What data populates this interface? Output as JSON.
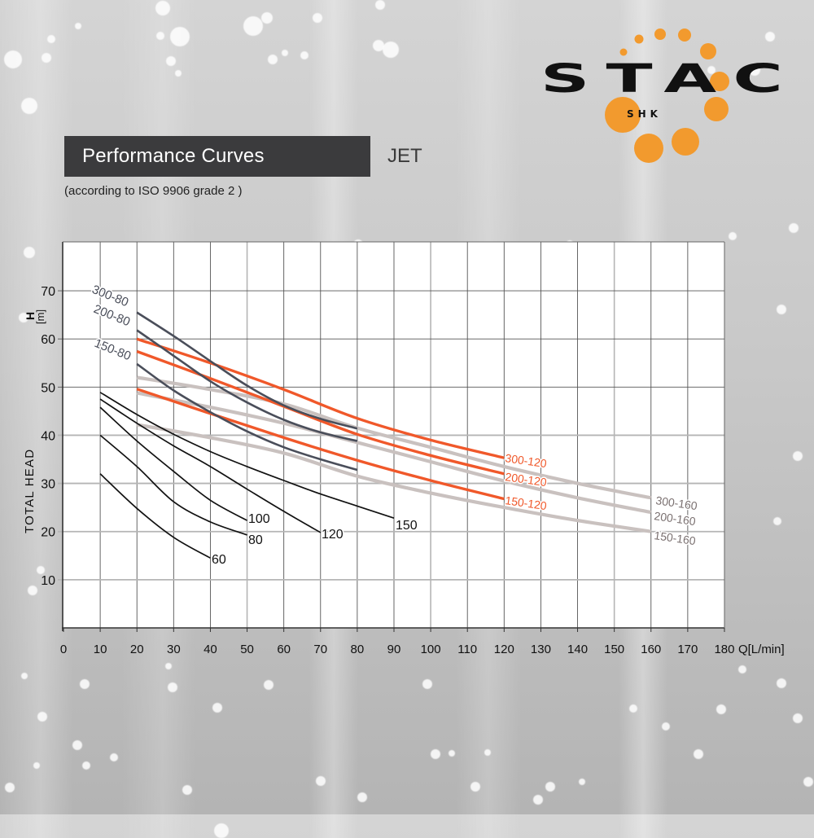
{
  "header": {
    "title": "Performance Curves",
    "model": "JET",
    "subtitle": "(according to ISO 9906 grade 2 )"
  },
  "logo": {
    "brand": "STAC",
    "sub": "SHK",
    "accent_color": "#F29A2E",
    "text_color": "#111111"
  },
  "colors": {
    "series_80": "#4a4e5a",
    "series_120": "#f0582a",
    "series_160": "#c9c1bf",
    "series_base": "#111111",
    "grid_dark": "#555555",
    "grid_light": "#b5b5b5",
    "label_160": "#7a7070"
  },
  "chart_data": {
    "type": "line",
    "title": "Performance Curves",
    "subtitle": "(according to ISO 9906 grade 2 )",
    "xlabel": "Q[L/min]",
    "ylabel": "TOTAL HEAD",
    "ylabel_unit": "H [m]",
    "xlim": [
      0,
      180
    ],
    "ylim": [
      0,
      80
    ],
    "xticks": [
      0,
      10,
      20,
      30,
      40,
      50,
      60,
      70,
      80,
      90,
      100,
      110,
      120,
      130,
      140,
      150,
      160,
      170,
      180
    ],
    "yticks": [
      10,
      20,
      30,
      40,
      50,
      60,
      70
    ],
    "grid": true,
    "legend": "inline labels at curve ends",
    "series": [
      {
        "name": "60",
        "group": "base",
        "x": [
          10,
          20,
          30,
          40
        ],
        "y": [
          32,
          24.8,
          18.8,
          14.5
        ]
      },
      {
        "name": "80",
        "group": "base",
        "x": [
          10,
          20,
          30,
          40,
          50
        ],
        "y": [
          40,
          33.5,
          26.2,
          22,
          19.3
        ]
      },
      {
        "name": "100",
        "group": "base",
        "x": [
          10,
          20,
          30,
          40,
          50
        ],
        "y": [
          45.8,
          38.8,
          32.5,
          26.5,
          22.3
        ]
      },
      {
        "name": "120",
        "group": "base",
        "x": [
          10,
          20,
          30,
          40,
          50,
          60,
          70
        ],
        "y": [
          47.5,
          42.5,
          37.8,
          33.5,
          28.8,
          24.2,
          19.8
        ]
      },
      {
        "name": "150",
        "group": "base",
        "x": [
          10,
          20,
          30,
          40,
          50,
          60,
          70,
          80,
          90
        ],
        "y": [
          48.9,
          44.3,
          40.2,
          36.6,
          33.5,
          30.6,
          27.8,
          25.3,
          22.8
        ]
      },
      {
        "name": "300-80",
        "group": "80",
        "x": [
          20,
          30,
          40,
          50,
          60,
          70,
          80
        ],
        "y": [
          65.5,
          60.6,
          55.4,
          50.3,
          46.2,
          43.4,
          41.4
        ]
      },
      {
        "name": "200-80",
        "group": "80",
        "x": [
          20,
          30,
          40,
          50,
          60,
          70,
          80
        ],
        "y": [
          61.8,
          56.5,
          51.2,
          46.8,
          43.2,
          40.6,
          38.8
        ]
      },
      {
        "name": "150-80",
        "group": "80",
        "x": [
          20,
          30,
          40,
          50,
          60,
          70,
          80
        ],
        "y": [
          54.8,
          49.3,
          44.8,
          40.8,
          37.5,
          35.0,
          32.8
        ]
      },
      {
        "name": "300-120",
        "group": "120",
        "x": [
          20,
          40,
          60,
          80,
          100,
          120
        ],
        "y": [
          60.0,
          55.0,
          49.5,
          43.5,
          39.0,
          35.3
        ]
      },
      {
        "name": "200-120",
        "group": "120",
        "x": [
          20,
          40,
          60,
          80,
          100,
          120
        ],
        "y": [
          57.4,
          51.8,
          46.0,
          40.2,
          35.8,
          32.0
        ]
      },
      {
        "name": "150-120",
        "group": "120",
        "x": [
          20,
          40,
          60,
          80,
          100,
          120
        ],
        "y": [
          49.6,
          44.5,
          39.5,
          34.8,
          30.6,
          26.8
        ]
      },
      {
        "name": "300-160",
        "group": "160",
        "x": [
          20,
          40,
          60,
          80,
          100,
          120,
          140,
          160
        ],
        "y": [
          52.0,
          49.5,
          46.5,
          41.5,
          37.5,
          33.5,
          30.0,
          27.0
        ]
      },
      {
        "name": "200-160",
        "group": "160",
        "x": [
          20,
          40,
          60,
          80,
          100,
          120,
          140,
          160
        ],
        "y": [
          48.8,
          45.8,
          42.5,
          38.5,
          34.5,
          30.5,
          27.0,
          24.0
        ]
      },
      {
        "name": "150-160",
        "group": "160",
        "x": [
          20,
          40,
          60,
          80,
          100,
          120,
          140,
          160
        ],
        "y": [
          42.2,
          39.5,
          36.3,
          31.5,
          28.0,
          25.0,
          22.3,
          20.0
        ]
      }
    ]
  }
}
